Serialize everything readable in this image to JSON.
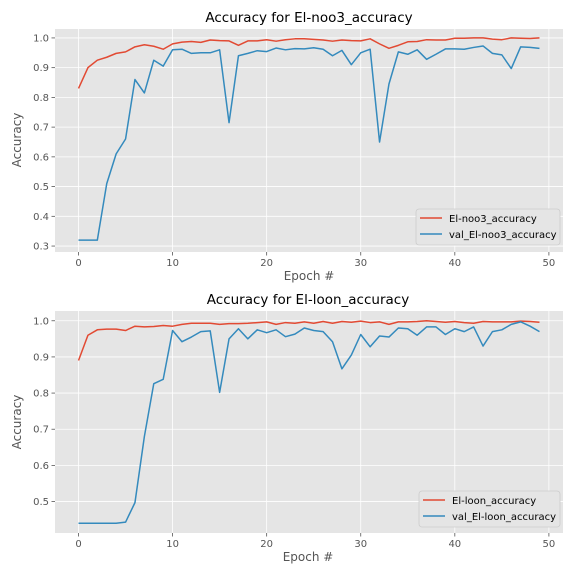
{
  "chart_data": [
    {
      "type": "line",
      "title": "Accuracy for El-noo3_accuracy",
      "xlabel": "Epoch #",
      "ylabel": "Accuracy",
      "xlim": [
        -2.5,
        51.5
      ],
      "ylim": [
        0.28,
        1.03
      ],
      "xticks": [
        0,
        10,
        20,
        30,
        40,
        50
      ],
      "yticks": [
        0.3,
        0.4,
        0.5,
        0.6,
        0.7,
        0.8,
        0.9,
        1.0
      ],
      "ytick_labels": [
        "0.3",
        "0.4",
        "0.5",
        "0.6",
        "0.7",
        "0.8",
        "0.9",
        "1.0"
      ],
      "grid": true,
      "legend_position": "lower-right",
      "x": [
        0,
        1,
        2,
        3,
        4,
        5,
        6,
        7,
        8,
        9,
        10,
        11,
        12,
        13,
        14,
        15,
        16,
        17,
        18,
        19,
        20,
        21,
        22,
        23,
        24,
        25,
        26,
        27,
        28,
        29,
        30,
        31,
        32,
        33,
        34,
        35,
        36,
        37,
        38,
        39,
        40,
        41,
        42,
        43,
        44,
        45,
        46,
        47,
        48,
        49
      ],
      "series": [
        {
          "name": "El-noo3_accuracy",
          "color": "#e24a33",
          "values": [
            0.83,
            0.9,
            0.925,
            0.935,
            0.948,
            0.953,
            0.97,
            0.977,
            0.972,
            0.962,
            0.98,
            0.986,
            0.988,
            0.985,
            0.993,
            0.991,
            0.99,
            0.975,
            0.99,
            0.99,
            0.994,
            0.989,
            0.994,
            0.997,
            0.997,
            0.995,
            0.993,
            0.989,
            0.993,
            0.991,
            0.99,
            0.997,
            0.98,
            0.965,
            0.975,
            0.987,
            0.988,
            0.994,
            0.993,
            0.993,
            0.999,
            0.999,
            1.0,
            1.0,
            0.996,
            0.994,
            1.0,
            0.999,
            0.998,
            1.0
          ]
        },
        {
          "name": "val_El-noo3_accuracy",
          "color": "#348abd",
          "values": [
            0.32,
            0.32,
            0.32,
            0.51,
            0.61,
            0.66,
            0.86,
            0.815,
            0.925,
            0.905,
            0.96,
            0.962,
            0.948,
            0.95,
            0.95,
            0.96,
            0.715,
            0.94,
            0.948,
            0.957,
            0.954,
            0.966,
            0.96,
            0.964,
            0.963,
            0.967,
            0.962,
            0.94,
            0.958,
            0.91,
            0.95,
            0.962,
            0.65,
            0.845,
            0.953,
            0.945,
            0.96,
            0.928,
            0.945,
            0.963,
            0.963,
            0.962,
            0.968,
            0.973,
            0.948,
            0.943,
            0.897,
            0.97,
            0.968,
            0.965
          ]
        }
      ]
    },
    {
      "type": "line",
      "title": "Accuracy for El-loon_accuracy",
      "xlabel": "Epoch #",
      "ylabel": "Accuracy",
      "xlim": [
        -2.5,
        51.5
      ],
      "ylim": [
        0.413,
        1.027
      ],
      "xticks": [
        0,
        10,
        20,
        30,
        40,
        50
      ],
      "yticks": [
        0.5,
        0.6,
        0.7,
        0.8,
        0.9,
        1.0
      ],
      "ytick_labels": [
        "0.5",
        "0.6",
        "0.7",
        "0.8",
        "0.9",
        "1.0"
      ],
      "grid": true,
      "legend_position": "lower-right",
      "x": [
        0,
        1,
        2,
        3,
        4,
        5,
        6,
        7,
        8,
        9,
        10,
        11,
        12,
        13,
        14,
        15,
        16,
        17,
        18,
        19,
        20,
        21,
        22,
        23,
        24,
        25,
        26,
        27,
        28,
        29,
        30,
        31,
        32,
        33,
        34,
        35,
        36,
        37,
        38,
        39,
        40,
        41,
        42,
        43,
        44,
        45,
        46,
        47,
        48,
        49
      ],
      "series": [
        {
          "name": "El-loon_accuracy",
          "color": "#e24a33",
          "values": [
            0.89,
            0.96,
            0.975,
            0.977,
            0.977,
            0.973,
            0.985,
            0.983,
            0.984,
            0.987,
            0.985,
            0.99,
            0.993,
            0.993,
            0.993,
            0.99,
            0.992,
            0.992,
            0.993,
            0.995,
            0.997,
            0.99,
            0.995,
            0.993,
            0.997,
            0.993,
            0.998,
            0.993,
            0.998,
            0.996,
            0.999,
            0.995,
            0.997,
            0.99,
            0.997,
            0.997,
            0.998,
            1.0,
            0.998,
            0.996,
            0.998,
            0.995,
            0.993,
            0.998,
            0.997,
            0.997,
            0.997,
            0.999,
            0.998,
            0.996
          ]
        },
        {
          "name": "val_El-loon_accuracy",
          "color": "#348abd",
          "values": [
            0.44,
            0.44,
            0.44,
            0.44,
            0.44,
            0.443,
            0.497,
            0.68,
            0.826,
            0.838,
            0.973,
            0.942,
            0.955,
            0.97,
            0.972,
            0.802,
            0.95,
            0.978,
            0.95,
            0.975,
            0.967,
            0.975,
            0.956,
            0.963,
            0.98,
            0.973,
            0.97,
            0.942,
            0.867,
            0.905,
            0.962,
            0.928,
            0.958,
            0.955,
            0.98,
            0.978,
            0.96,
            0.983,
            0.983,
            0.962,
            0.978,
            0.97,
            0.983,
            0.93,
            0.97,
            0.975,
            0.99,
            0.997,
            0.985,
            0.97
          ]
        }
      ]
    }
  ]
}
